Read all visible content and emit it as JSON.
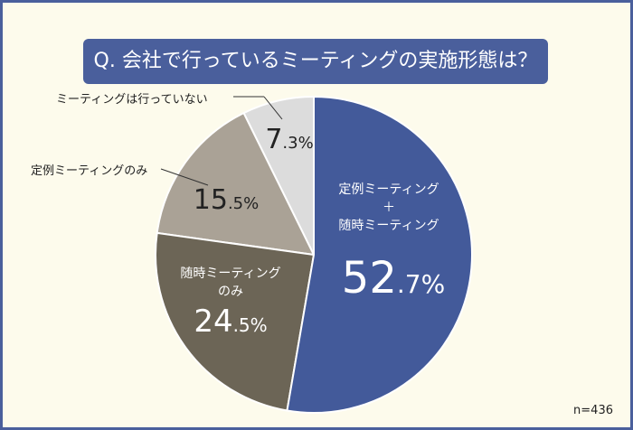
{
  "title": "Q. 会社で行っているミーティングの実施形態は？",
  "note": "n=436",
  "chart_data": {
    "type": "pie",
    "title": "Q. 会社で行っているミーティングの実施形態は？",
    "start": "top",
    "direction": "clockwise",
    "slices": [
      {
        "label": "定例ミーティング＋随時ミーティング",
        "label_line1": "定例ミーティング",
        "label_plus": "＋",
        "label_line2": "随時ミーティング",
        "value": 52.7,
        "int": "52",
        "dec": ".7%",
        "color": "#435a9a"
      },
      {
        "label": "随時ミーティングのみ",
        "label_line1": "随時ミーティング",
        "label_line2": "のみ",
        "value": 24.5,
        "int": "24",
        "dec": ".5%",
        "color": "#6c6556"
      },
      {
        "label": "定例ミーティングのみ",
        "value": 15.5,
        "int": "15",
        "dec": ".5%",
        "color": "#aaa296"
      },
      {
        "label": "ミーティングは行っていない",
        "value": 7.3,
        "int": "7",
        "dec": ".3%",
        "color": "#dcdcdc"
      }
    ]
  }
}
